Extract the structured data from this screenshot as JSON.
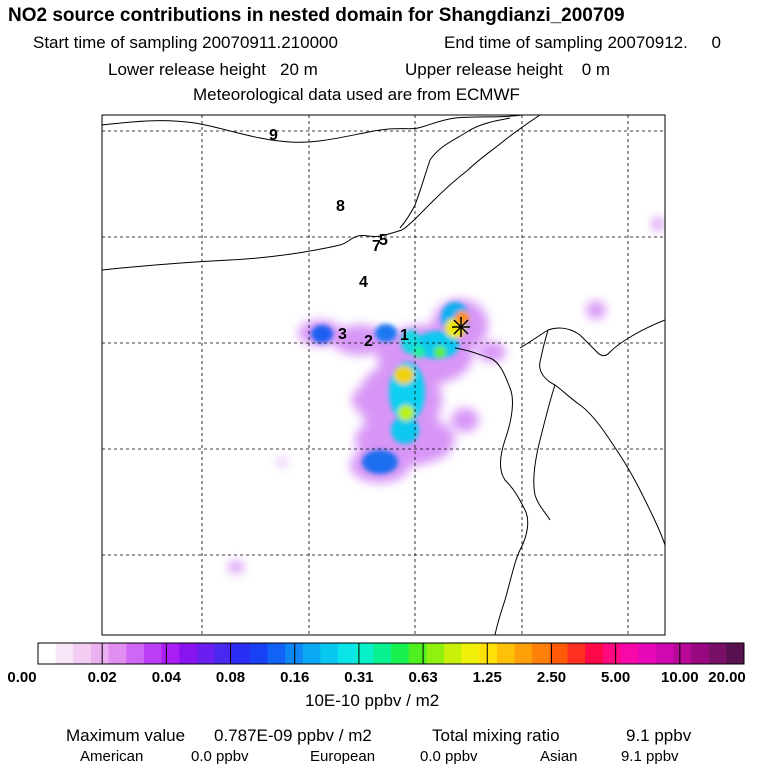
{
  "header": {
    "title": "NO2 source contributions in nested domain for Shangdianzi_200709",
    "start_label": "Start time of sampling 20070911.210000",
    "end_label": "End time of sampling 20070912.     0",
    "lower_label": "Lower release height   20 m",
    "upper_label": "Upper release height    0 m",
    "met_label": "Meteorological data used are from ECMWF"
  },
  "map": {
    "site_marker": "asterisk-star",
    "region_labels": [
      "1",
      "2",
      "3",
      "4",
      "5",
      "7",
      "8",
      "9"
    ]
  },
  "colorbar": {
    "tick_labels": [
      "0.00",
      "0.02",
      "0.04",
      "0.08",
      "0.16",
      "0.31",
      "0.63",
      "1.25",
      "2.50",
      "5.00",
      "10.00",
      "20.00"
    ],
    "colors": [
      "#ffffff",
      "#f8e6f8",
      "#f2ccf2",
      "#ebb0f0",
      "#e08ef0",
      "#d066f5",
      "#bc3ef5",
      "#a81ef5",
      "#8a14f0",
      "#6a1ef0",
      "#4a28f0",
      "#2a2ef5",
      "#1840f5",
      "#1262f5",
      "#0e86f5",
      "#0aa8f5",
      "#08c8f0",
      "#08e4e8",
      "#08f0c8",
      "#08f090",
      "#18f050",
      "#50f020",
      "#90f010",
      "#c8f008",
      "#f0f008",
      "#ffe008",
      "#ffc008",
      "#ffa008",
      "#ff8008",
      "#ff5a08",
      "#ff3020",
      "#ff0848",
      "#ff0880",
      "#f808a8",
      "#e808b8",
      "#d008b0",
      "#b80898",
      "#980880",
      "#781068",
      "#581050"
    ],
    "unit": "10E-10 ppbv / m2"
  },
  "summary": {
    "max_label": "Maximum value",
    "max_value": "0.787E-09 ppbv / m2",
    "total_label": "Total mixing ratio",
    "total_value": "9.1 ppbv",
    "american_label": "American",
    "american_value": "0.0 ppbv",
    "european_label": "European",
    "european_value": "0.0 ppbv",
    "asian_label": "Asian",
    "asian_value": "9.1 ppbv"
  }
}
